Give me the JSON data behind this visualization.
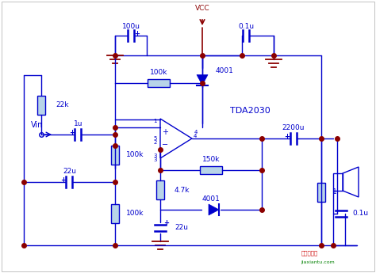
{
  "bg_color": "#ffffff",
  "line_color": "#0000cc",
  "dot_color": "#8b0000",
  "vcc_color": "#8b0000",
  "gnd_color": "#8b0000",
  "lw": 1.0,
  "components": {
    "VCC_label": "VCC",
    "C100u_label": "100u",
    "C01u_label": "0.1u",
    "R100k_fb_label": "100k",
    "D1_label": "4001",
    "IC_label": "TDA2030",
    "C2200u_label": "2200u",
    "R22k_label": "22k",
    "C1u_label": "1u",
    "R100k_a_label": "100k",
    "C22u_a_label": "22u",
    "R100k_b_label": "100k",
    "R150k_label": "150k",
    "D2_label": "4001",
    "R47k_label": "4.7k",
    "C22u_b_label": "22u",
    "C01u_b_label": "0.1u",
    "R1_label": "1",
    "Vin_label": "Vin"
  }
}
